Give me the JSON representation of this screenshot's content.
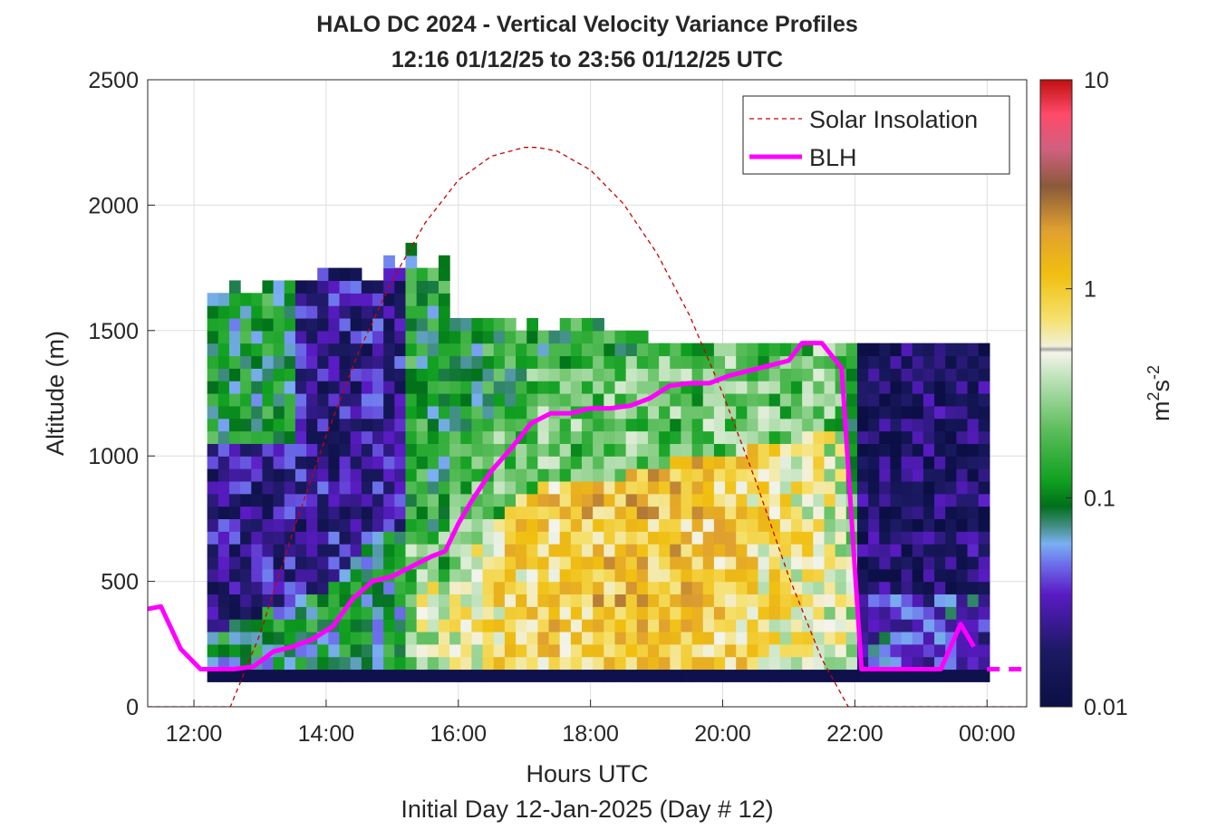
{
  "chart_data": {
    "type": "heatmap",
    "title": "HALO DC 2024 - Vertical Velocity Variance Profiles",
    "subtitle": "12:16 01/12/25 to 23:56 01/12/25  UTC",
    "xlabel": "Hours UTC",
    "xlabel2": "Initial Day 12-Jan-2025 (Day # 12)",
    "ylabel": "Altitude (m)",
    "xlim": [
      11.3,
      24.6
    ],
    "ylim": [
      0,
      2500
    ],
    "x_ticks": [
      12,
      14,
      16,
      18,
      20,
      22,
      24
    ],
    "x_tick_labels": [
      "12:00",
      "14:00",
      "16:00",
      "18:00",
      "20:00",
      "22:00",
      "00:00"
    ],
    "y_ticks": [
      0,
      500,
      1000,
      1500,
      2000,
      2500
    ],
    "y_tick_labels": [
      "0",
      "500",
      "1000",
      "1500",
      "2000",
      "2500"
    ],
    "grid": true,
    "legend_position": "top-right",
    "legend": [
      {
        "name": "Solar Insolation",
        "style": "dashed",
        "color": "#cc0000"
      },
      {
        "name": "BLH",
        "style": "solid",
        "color": "#ff00ff"
      }
    ],
    "colorbar": {
      "label_base": "m",
      "label_sup1": "2",
      "label_s": "s",
      "label_sup2": "-2",
      "scale": "log",
      "range": [
        0.01,
        10
      ],
      "ticks": [
        0.01,
        0.1,
        1,
        10
      ],
      "tick_labels": [
        "0.01",
        "0.1",
        "1",
        "10"
      ]
    },
    "heatmap": {
      "x_start": 12.2,
      "x_end": 23.9,
      "bin_hours": 0.1667,
      "y_start": 100,
      "bin_m": 50,
      "column_tops": [
        1620,
        1620,
        1670,
        1620,
        1620,
        1670,
        1670,
        1670,
        1670,
        1670,
        1720,
        1720,
        1720,
        1720,
        1670,
        1670,
        1770,
        1720,
        1820,
        1720,
        1720,
        1770,
        1520,
        1520,
        1520,
        1520,
        1520,
        1520,
        1470,
        1520,
        1470,
        1470,
        1520,
        1520,
        1520,
        1520,
        1470,
        1470,
        1470,
        1470,
        1420,
        1420,
        1420,
        1420,
        1420,
        1420,
        1420,
        1420,
        1420,
        1420,
        1420,
        1420,
        1420,
        1420,
        1420,
        1420,
        1420,
        1420,
        1420,
        1420,
        1420,
        1420,
        1420,
        1420,
        1420,
        1420,
        1420,
        1420,
        1420,
        1420,
        1420,
        1420
      ]
    },
    "series": [
      {
        "name": "Solar Insolation",
        "type": "curve",
        "x": [
          11.3,
          12.55,
          13.0,
          13.5,
          14.0,
          14.5,
          15.0,
          15.5,
          16.0,
          16.5,
          17.0,
          17.2,
          17.5,
          18.0,
          18.5,
          19.0,
          19.5,
          20.0,
          20.5,
          21.0,
          21.5,
          21.9,
          24.6
        ],
        "y": [
          0,
          0,
          290,
          700,
          1080,
          1420,
          1700,
          1930,
          2100,
          2195,
          2230,
          2230,
          2215,
          2140,
          2005,
          1810,
          1560,
          1250,
          900,
          520,
          190,
          0,
          0
        ]
      },
      {
        "name": "BLH",
        "type": "line",
        "x": [
          11.3,
          11.5,
          11.8,
          12.1,
          12.6,
          12.9,
          13.2,
          13.5,
          13.8,
          14.1,
          14.4,
          14.7,
          15.0,
          15.3,
          15.6,
          15.8,
          16.0,
          16.2,
          16.5,
          16.8,
          17.1,
          17.4,
          17.7,
          18.0,
          18.3,
          18.6,
          18.9,
          19.2,
          19.5,
          19.8,
          20.1,
          20.4,
          20.7,
          21.0,
          21.2,
          21.5,
          21.8,
          22.1,
          22.4,
          22.7,
          23.0,
          23.3,
          23.6,
          23.8,
          24.0,
          24.3,
          24.6
        ],
        "y": [
          390,
          400,
          230,
          150,
          150,
          160,
          220,
          240,
          270,
          320,
          430,
          500,
          520,
          560,
          600,
          620,
          730,
          820,
          940,
          1030,
          1130,
          1170,
          1170,
          1190,
          1190,
          1200,
          1230,
          1280,
          1290,
          1290,
          1320,
          1340,
          1360,
          1380,
          1450,
          1450,
          1350,
          150,
          150,
          150,
          150,
          150,
          330,
          240,
          150,
          150,
          150
        ]
      }
    ]
  }
}
